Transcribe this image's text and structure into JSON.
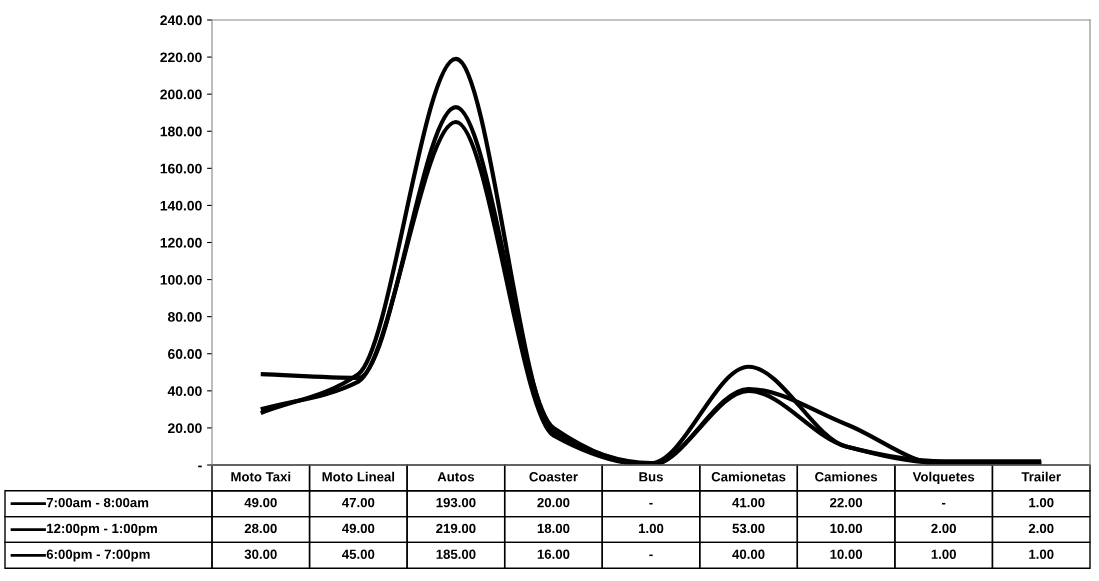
{
  "chart_data": {
    "type": "line",
    "categories": [
      "Moto Taxi",
      "Moto Lineal",
      "Autos",
      "Coaster",
      "Bus",
      "Camionetas",
      "Camiones",
      "Volquetes",
      "Trailer"
    ],
    "series": [
      {
        "name": "7:00am - 8:00am",
        "color": "#000000",
        "values": [
          49,
          47,
          193,
          20,
          0,
          41,
          22,
          0,
          1
        ],
        "value_labels": [
          "49.00",
          "47.00",
          "193.00",
          "20.00",
          "-",
          "41.00",
          "22.00",
          "-",
          "1.00"
        ]
      },
      {
        "name": "12:00pm - 1:00pm",
        "color": "#000000",
        "values": [
          28,
          49,
          219,
          18,
          1,
          53,
          10,
          2,
          2
        ],
        "value_labels": [
          "28.00",
          "49.00",
          "219.00",
          "18.00",
          "1.00",
          "53.00",
          "10.00",
          "2.00",
          "2.00"
        ]
      },
      {
        "name": "6:00pm - 7:00pm",
        "color": "#000000",
        "values": [
          30,
          45,
          185,
          16,
          0,
          40,
          10,
          1,
          1
        ],
        "value_labels": [
          "30.00",
          "45.00",
          "185.00",
          "16.00",
          "-",
          "40.00",
          "10.00",
          "1.00",
          "1.00"
        ]
      }
    ],
    "ylim": [
      0,
      240
    ],
    "yticks": [
      {
        "value": 0,
        "label": "-"
      },
      {
        "value": 20,
        "label": "20.00"
      },
      {
        "value": 40,
        "label": "40.00"
      },
      {
        "value": 60,
        "label": "60.00"
      },
      {
        "value": 80,
        "label": "80.00"
      },
      {
        "value": 100,
        "label": "100.00"
      },
      {
        "value": 120,
        "label": "120.00"
      },
      {
        "value": 140,
        "label": "140.00"
      },
      {
        "value": 160,
        "label": "160.00"
      },
      {
        "value": 180,
        "label": "180.00"
      },
      {
        "value": 200,
        "label": "200.00"
      },
      {
        "value": 220,
        "label": "220.00"
      },
      {
        "value": 240,
        "label": "240.00"
      }
    ],
    "grid": false,
    "legend": "bottom left",
    "marker": "none",
    "line_style": "solid"
  }
}
